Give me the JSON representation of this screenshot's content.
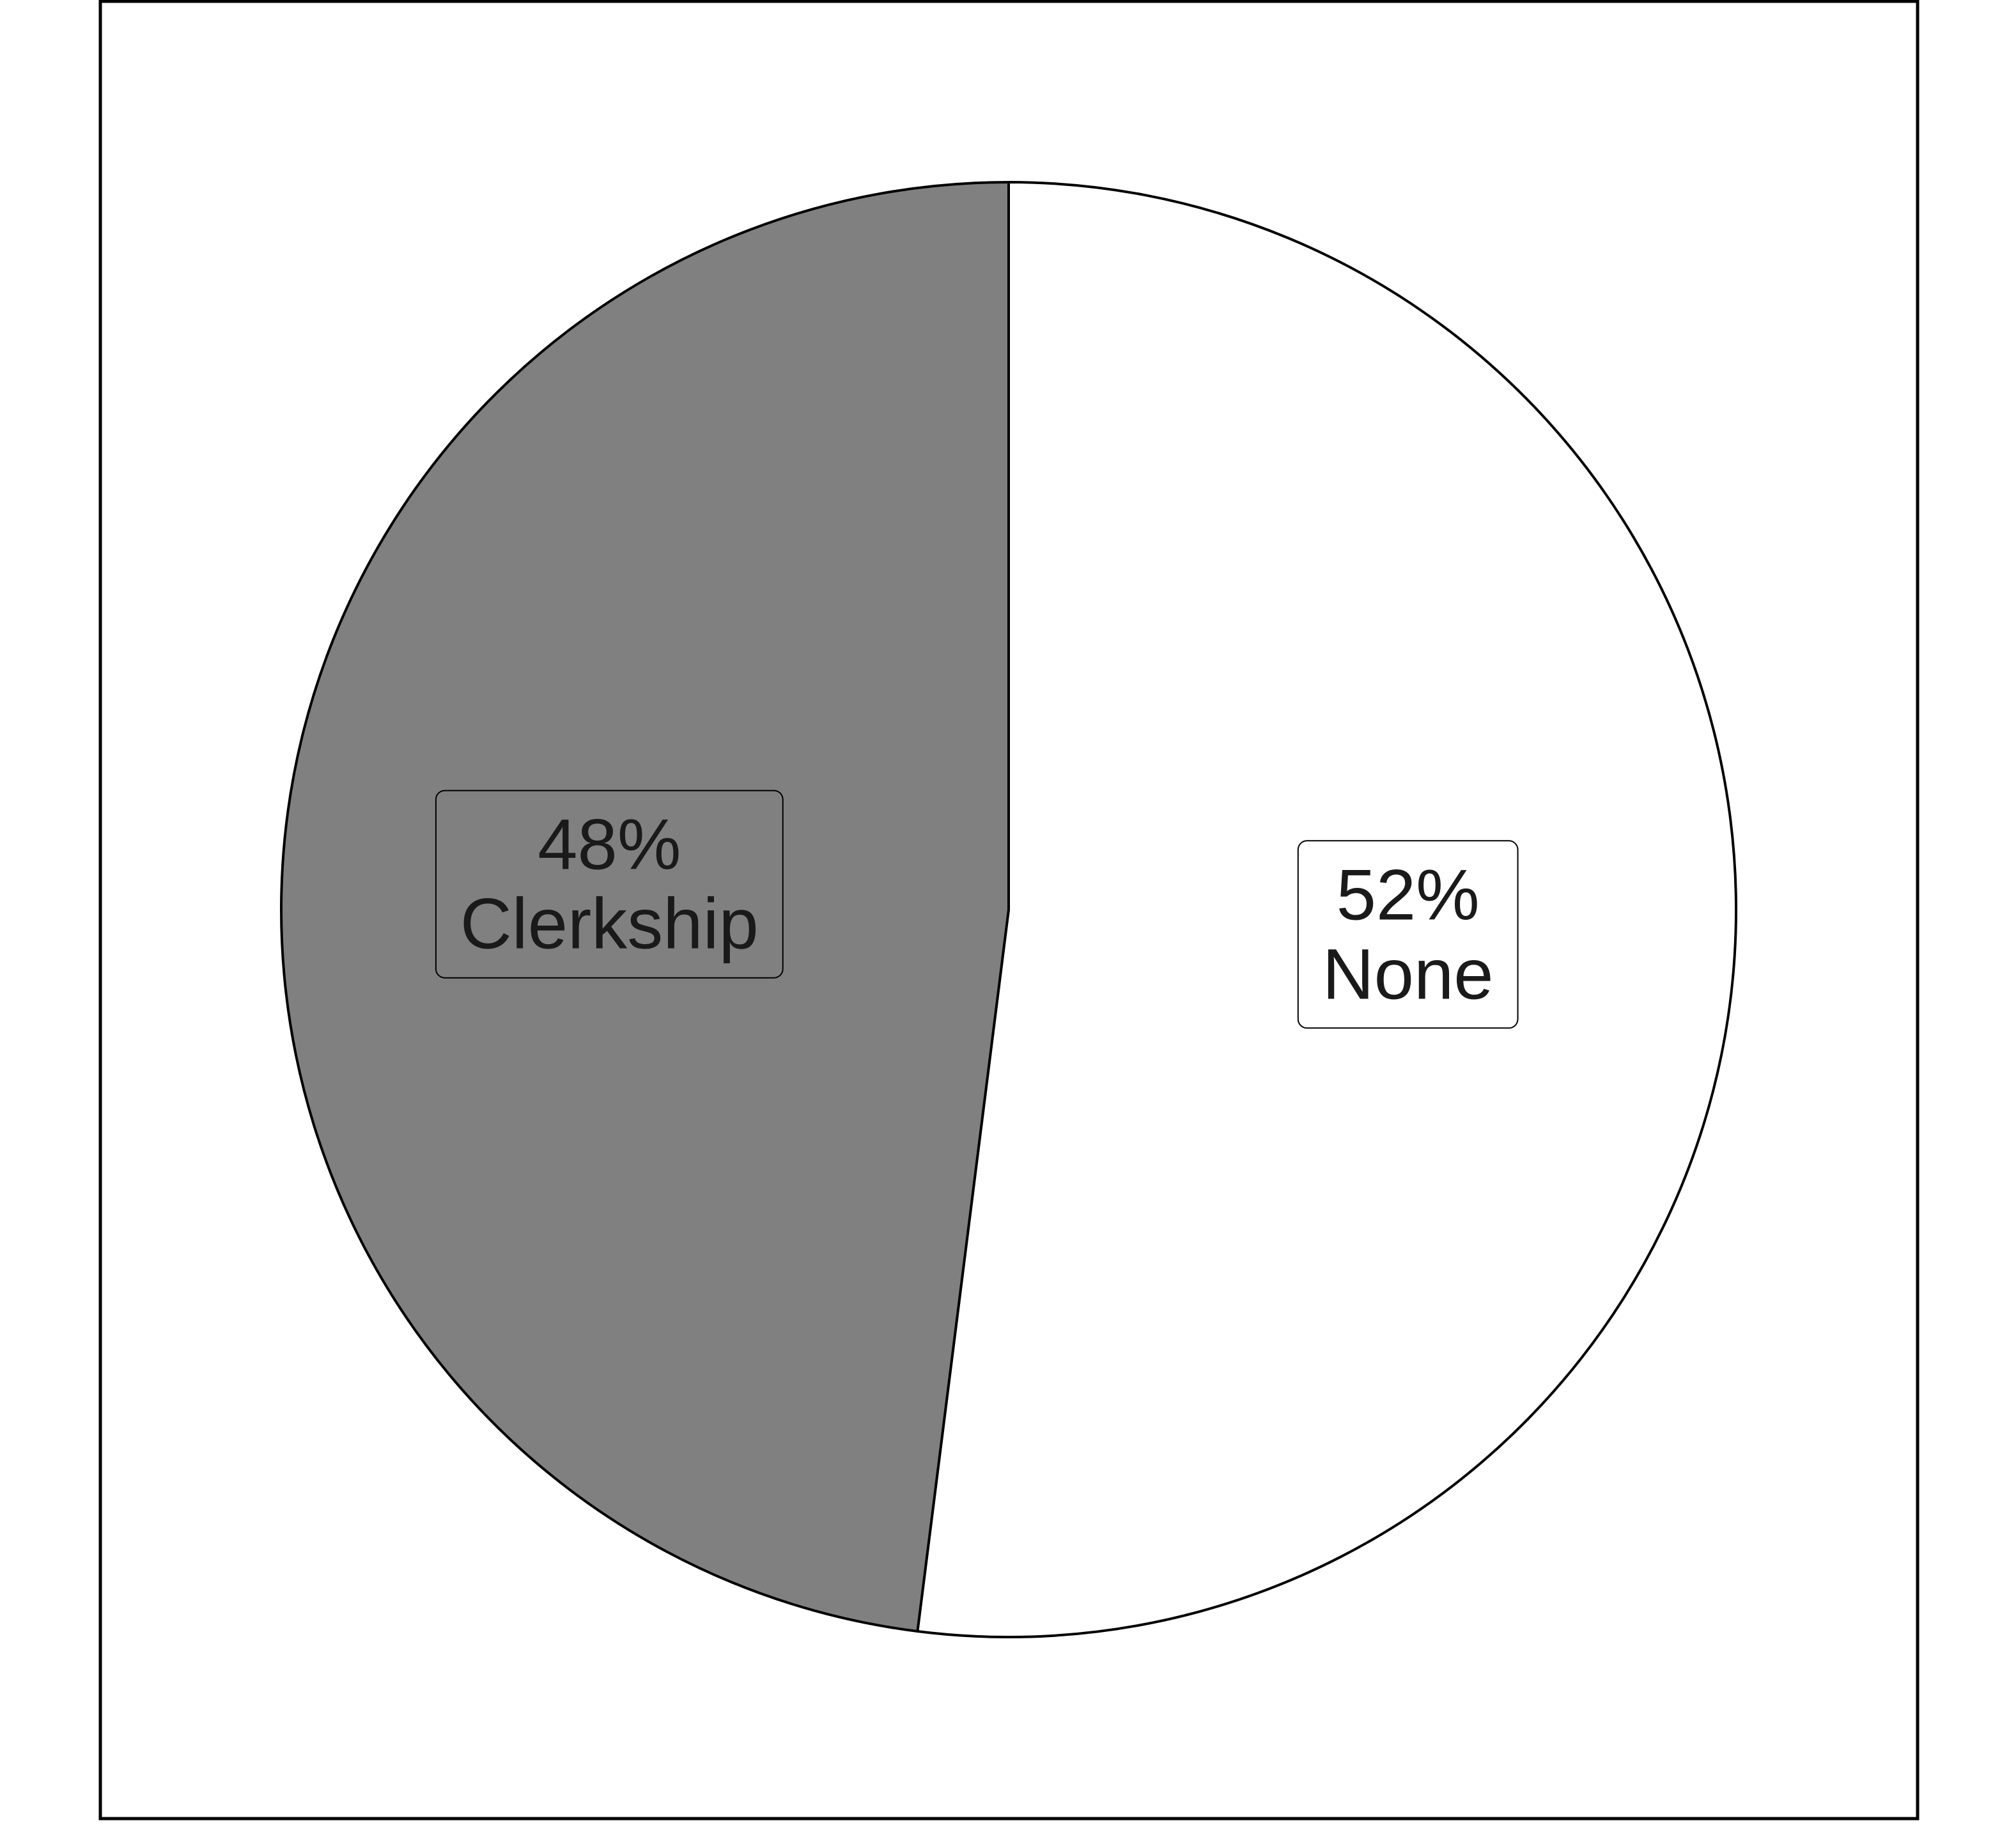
{
  "chart_data": {
    "type": "pie",
    "title": "",
    "start_angle_deg": 0,
    "direction": "clockwise",
    "slices": [
      {
        "label": "None",
        "percent_label": "52%",
        "value": 52,
        "color": "#ffffff"
      },
      {
        "label": "Clerkship",
        "percent_label": "48%",
        "value": 48,
        "color": "#808080"
      }
    ],
    "legend": "none",
    "frame": true
  }
}
